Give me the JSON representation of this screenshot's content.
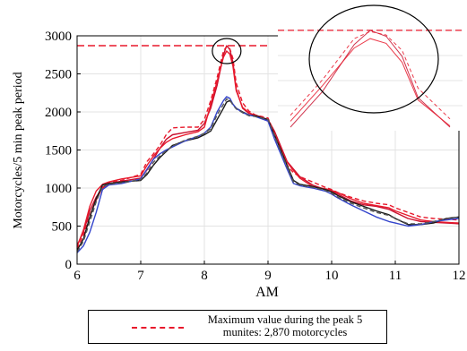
{
  "chart_data": {
    "type": "line",
    "xlabel": "AM",
    "ylabel": "Motorcycles/5 min peak period",
    "xlim": [
      6,
      12
    ],
    "ylim": [
      0,
      3000
    ],
    "x_ticks": [
      "6",
      "7",
      "8",
      "9",
      "10",
      "11",
      "12"
    ],
    "y_ticks": [
      "0",
      "500",
      "1000",
      "1500",
      "2000",
      "2500",
      "3000"
    ],
    "grid": "on",
    "legend_placement": "bottom-center, below the axes",
    "max_line": {
      "y": 2870,
      "style": "dashed",
      "color": "#e8192c"
    },
    "series": [
      {
        "color": "#c8102e",
        "style": "solid",
        "x": [
          6.0,
          6.1,
          6.2,
          6.3,
          6.4,
          6.5,
          6.7,
          7.0,
          7.1,
          7.2,
          7.3,
          7.4,
          7.5,
          7.7,
          7.9,
          8.0,
          8.1,
          8.2,
          8.3,
          8.35,
          8.4,
          8.45,
          8.5,
          8.6,
          8.7,
          8.8,
          9.0,
          9.1,
          9.2,
          9.3,
          9.4,
          9.5,
          9.7,
          9.9,
          10.0,
          10.1,
          10.3,
          10.5,
          10.7,
          10.9,
          11.0,
          11.2,
          11.4,
          11.6,
          11.8,
          12.0
        ],
        "y": [
          250,
          420,
          700,
          880,
          1000,
          1060,
          1090,
          1130,
          1240,
          1380,
          1520,
          1640,
          1700,
          1730,
          1760,
          1850,
          2050,
          2350,
          2750,
          2870,
          2820,
          2650,
          2300,
          2050,
          1980,
          1960,
          1900,
          1750,
          1550,
          1350,
          1250,
          1150,
          1040,
          980,
          960,
          920,
          830,
          780,
          760,
          720,
          680,
          600,
          560,
          550,
          540,
          530
        ]
      },
      {
        "color": "#e8192c",
        "style": "dashed",
        "x": [
          6.0,
          6.1,
          6.2,
          6.3,
          6.4,
          6.5,
          6.7,
          7.0,
          7.1,
          7.2,
          7.3,
          7.4,
          7.5,
          7.7,
          7.9,
          8.0,
          8.1,
          8.2,
          8.3,
          8.35,
          8.4,
          8.45,
          8.5,
          8.6,
          8.7,
          8.8,
          9.0,
          9.1,
          9.2,
          9.3,
          9.4,
          9.5,
          9.7,
          9.9,
          10.0,
          10.1,
          10.3,
          10.5,
          10.7,
          10.9,
          11.0,
          11.2,
          11.4,
          11.6,
          11.8,
          12.0
        ],
        "y": [
          200,
          380,
          640,
          840,
          1010,
          1070,
          1100,
          1180,
          1350,
          1450,
          1560,
          1700,
          1790,
          1800,
          1800,
          1900,
          2150,
          2450,
          2800,
          2860,
          2830,
          2700,
          2380,
          2120,
          2010,
          1960,
          1920,
          1720,
          1500,
          1300,
          1200,
          1150,
          1080,
          1010,
          980,
          940,
          880,
          830,
          800,
          780,
          740,
          680,
          620,
          600,
          590,
          580
        ]
      },
      {
        "color": "#e8192c",
        "style": "solid",
        "x": [
          6.0,
          6.1,
          6.2,
          6.3,
          6.4,
          6.5,
          6.7,
          7.0,
          7.1,
          7.2,
          7.3,
          7.4,
          7.5,
          7.7,
          7.9,
          8.0,
          8.1,
          8.2,
          8.3,
          8.35,
          8.4,
          8.45,
          8.5,
          8.6,
          8.7,
          8.8,
          9.0,
          9.1,
          9.2,
          9.3,
          9.4,
          9.5,
          9.7,
          9.9,
          10.0,
          10.1,
          10.3,
          10.5,
          10.7,
          10.9,
          11.0,
          11.2,
          11.4,
          11.6,
          11.8,
          12.0
        ],
        "y": [
          230,
          450,
          760,
          960,
          1050,
          1080,
          1120,
          1160,
          1300,
          1420,
          1520,
          1600,
          1650,
          1700,
          1740,
          1800,
          2100,
          2400,
          2720,
          2800,
          2760,
          2600,
          2280,
          2060,
          1990,
          1950,
          1880,
          1700,
          1520,
          1340,
          1230,
          1130,
          1020,
          990,
          970,
          940,
          860,
          800,
          770,
          740,
          700,
          640,
          580,
          560,
          550,
          540
        ]
      },
      {
        "color": "#1a1a1a",
        "style": "solid",
        "x": [
          6.0,
          6.1,
          6.2,
          6.3,
          6.4,
          6.5,
          6.7,
          7.0,
          7.1,
          7.2,
          7.3,
          7.4,
          7.5,
          7.7,
          7.9,
          8.0,
          8.1,
          8.2,
          8.3,
          8.35,
          8.4,
          8.45,
          8.5,
          8.6,
          8.7,
          8.8,
          9.0,
          9.1,
          9.2,
          9.3,
          9.4,
          9.5,
          9.7,
          9.9,
          10.0,
          10.1,
          10.3,
          10.5,
          10.7,
          10.9,
          11.0,
          11.2,
          11.4,
          11.6,
          11.8,
          12.0
        ],
        "y": [
          180,
          330,
          620,
          860,
          1040,
          1060,
          1080,
          1100,
          1180,
          1300,
          1400,
          1480,
          1560,
          1620,
          1660,
          1700,
          1750,
          1900,
          2050,
          2130,
          2150,
          2100,
          2050,
          2000,
          1960,
          1950,
          1900,
          1700,
          1500,
          1300,
          1100,
          1050,
          1020,
          980,
          950,
          900,
          820,
          760,
          700,
          650,
          600,
          520,
          520,
          540,
          600,
          620
        ]
      },
      {
        "color": "#3344cc",
        "style": "solid",
        "x": [
          6.0,
          6.1,
          6.2,
          6.3,
          6.4,
          6.5,
          6.7,
          7.0,
          7.1,
          7.2,
          7.3,
          7.4,
          7.5,
          7.7,
          7.9,
          8.0,
          8.1,
          8.2,
          8.3,
          8.35,
          8.4,
          8.45,
          8.5,
          8.6,
          8.7,
          8.8,
          9.0,
          9.1,
          9.2,
          9.3,
          9.4,
          9.5,
          9.7,
          9.9,
          10.0,
          10.1,
          10.3,
          10.5,
          10.7,
          10.9,
          11.0,
          11.2,
          11.4,
          11.6,
          11.8,
          12.0
        ],
        "y": [
          150,
          240,
          420,
          680,
          980,
          1040,
          1060,
          1120,
          1250,
          1380,
          1450,
          1500,
          1540,
          1620,
          1680,
          1720,
          1800,
          2000,
          2150,
          2200,
          2180,
          2100,
          2050,
          1990,
          1960,
          1940,
          1880,
          1650,
          1450,
          1250,
          1060,
          1030,
          1000,
          960,
          920,
          870,
          780,
          700,
          620,
          560,
          540,
          500,
          520,
          560,
          580,
          600
        ]
      },
      {
        "color": "#555555",
        "style": "dashed",
        "x": [
          6.0,
          6.1,
          6.2,
          6.3,
          6.4,
          6.5,
          6.7,
          7.0,
          7.1,
          7.2,
          7.3,
          7.4,
          7.5,
          7.7,
          7.9,
          8.0,
          8.1,
          8.2,
          8.3,
          8.35,
          8.4,
          8.45,
          8.5,
          8.6,
          8.7,
          8.8,
          9.0,
          9.1,
          9.2,
          9.3,
          9.4,
          9.5,
          9.7,
          9.9,
          10.0,
          10.1,
          10.3,
          10.5,
          10.7,
          10.9,
          11.0,
          11.2,
          11.4,
          11.6,
          11.8,
          12.0
        ],
        "y": [
          160,
          300,
          560,
          820,
          1020,
          1050,
          1070,
          1110,
          1200,
          1340,
          1420,
          1490,
          1550,
          1630,
          1680,
          1720,
          1780,
          1960,
          2100,
          2170,
          2160,
          2090,
          2040,
          1990,
          1950,
          1940,
          1900,
          1690,
          1480,
          1280,
          1080,
          1040,
          1010,
          970,
          930,
          880,
          800,
          740,
          680,
          640,
          600,
          530,
          530,
          560,
          600,
          620
        ]
      }
    ],
    "annotations": {
      "peak_marker": "circle around the peak near 8:20 AM",
      "inset": "zoomed view of the peak region"
    },
    "legend": [
      {
        "label": "Maximum value during the peak 5 munites: 2,870 motorcycles",
        "style": "dashed",
        "color": "#e8192c"
      }
    ]
  }
}
